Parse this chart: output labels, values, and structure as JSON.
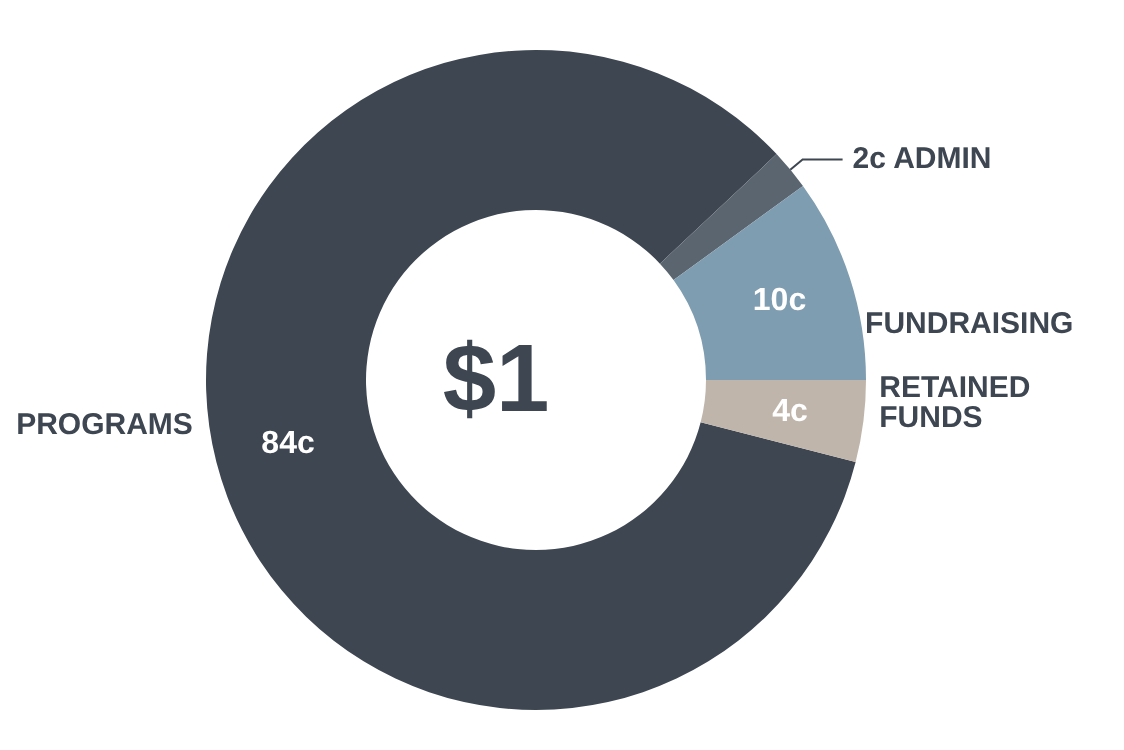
{
  "chart_data": {
    "type": "donut",
    "categories": [
      "PROGRAMS",
      "ADMIN",
      "FUNDRAISING",
      "RETAINED FUNDS"
    ],
    "values": [
      84,
      2,
      10,
      4
    ],
    "colors": [
      "#3d4651",
      "#5b6570",
      "#7f9db0",
      "#bfb5ab"
    ],
    "value_labels": [
      "84c",
      "2c",
      "10c",
      "4c"
    ],
    "annotations": [
      "$1"
    ]
  }
}
